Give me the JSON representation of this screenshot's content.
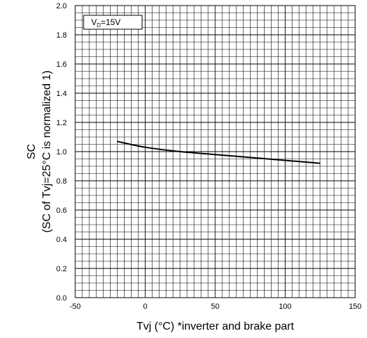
{
  "chart_data": {
    "type": "line",
    "xlabel": "Tvj (°C) *inverter and brake part",
    "ylabel_line1": "SC",
    "ylabel_line2": "(SC of Tvj=25°C is normalized 1)",
    "xlim": [
      -50,
      150
    ],
    "ylim": [
      0.0,
      2.0
    ],
    "x_ticks": [
      -50,
      0,
      50,
      100,
      150
    ],
    "y_ticks": [
      "0.0",
      "0.2",
      "0.4",
      "0.6",
      "0.8",
      "1.0",
      "1.2",
      "1.4",
      "1.6",
      "1.8",
      "2.0"
    ],
    "x_minor_step": 5,
    "y_minor_step": 0.05,
    "grid": true,
    "legend": {
      "main": "V",
      "sub": "D",
      "tail": "=15V",
      "placement": "top-left"
    },
    "series": [
      {
        "color": "#000000",
        "x": [
          -20,
          0,
          25,
          50,
          75,
          100,
          125
        ],
        "y": [
          1.07,
          1.03,
          1.0,
          0.98,
          0.96,
          0.94,
          0.92
        ]
      }
    ]
  }
}
